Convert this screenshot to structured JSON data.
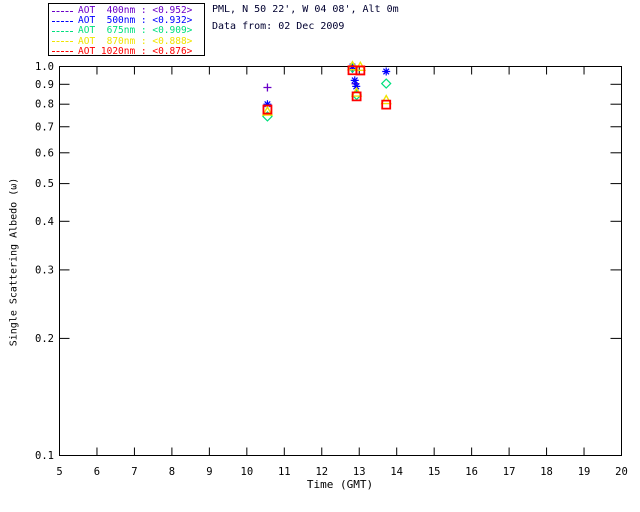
{
  "header": {
    "location_line": "PML, N 50 22', W 04 08', Alt 0m",
    "date_line": "Data from: 02 Dec 2009"
  },
  "legend": {
    "items": [
      {
        "label": "AOT  400nm : <0.952>",
        "wavelength_nm": 400,
        "mean_ssa": 0.952,
        "color": "#6A00C8",
        "marker": "plus"
      },
      {
        "label": "AOT  500nm : <0.932>",
        "wavelength_nm": 500,
        "mean_ssa": 0.932,
        "color": "#0000FF",
        "marker": "asterisk"
      },
      {
        "label": "AOT  675nm : <0.909>",
        "wavelength_nm": 675,
        "mean_ssa": 0.909,
        "color": "#00E07E",
        "marker": "diamond"
      },
      {
        "label": "AOT  870nm : <0.888>",
        "wavelength_nm": 870,
        "mean_ssa": 0.888,
        "color": "#F0E400",
        "marker": "triangle"
      },
      {
        "label": "AOT 1020nm : <0.876>",
        "wavelength_nm": 1020,
        "mean_ssa": 0.876,
        "color": "#FF0000",
        "marker": "square"
      }
    ]
  },
  "chart_data": {
    "type": "scatter",
    "title": "",
    "xlabel": "Time (GMT)",
    "ylabel": "Single Scattering Albedo (ω)",
    "xlim": [
      5,
      20
    ],
    "x_ticks": [
      5,
      6,
      7,
      8,
      9,
      10,
      11,
      12,
      13,
      14,
      15,
      16,
      17,
      18,
      19,
      20
    ],
    "y_scale": "log",
    "ylim": [
      0.1,
      1.0
    ],
    "y_ticks": [
      1.0,
      0.9,
      0.8,
      0.7,
      0.6,
      0.5,
      0.4,
      0.3,
      0.2,
      0.1
    ],
    "y_tick_labels": [
      "1.0",
      "0.9",
      "0.8",
      "0.7",
      "0.6",
      "0.5",
      "0.4",
      "0.3",
      "0.2",
      "0.1"
    ],
    "grid": false,
    "legend_position": "top-left",
    "series": [
      {
        "name": "AOT 400nm",
        "color": "#6A00C8",
        "marker": "plus",
        "points": [
          [
            10.55,
            0.883
          ],
          [
            12.82,
            0.985
          ],
          [
            12.9,
            0.903
          ]
        ]
      },
      {
        "name": "AOT 500nm",
        "color": "#0000FF",
        "marker": "asterisk",
        "points": [
          [
            10.55,
            0.8
          ],
          [
            12.82,
            1.0
          ],
          [
            12.88,
            0.921
          ],
          [
            12.92,
            0.889
          ],
          [
            13.72,
            0.971
          ]
        ]
      },
      {
        "name": "AOT 675nm",
        "color": "#00E07E",
        "marker": "diamond",
        "points": [
          [
            10.55,
            0.744
          ],
          [
            12.82,
            0.993
          ],
          [
            12.93,
            0.845
          ],
          [
            13.72,
            0.904
          ]
        ]
      },
      {
        "name": "AOT 870nm",
        "color": "#F0E400",
        "marker": "triangle",
        "points": [
          [
            10.55,
            0.766
          ],
          [
            12.82,
            1.002
          ],
          [
            13.03,
            0.998
          ],
          [
            12.93,
            0.857
          ],
          [
            13.72,
            0.82
          ]
        ]
      },
      {
        "name": "AOT 1020nm",
        "color": "#FF0000",
        "marker": "square",
        "points": [
          [
            10.55,
            0.775
          ],
          [
            12.82,
            0.978
          ],
          [
            13.03,
            0.977
          ],
          [
            12.93,
            0.838
          ],
          [
            13.72,
            0.798
          ]
        ]
      }
    ]
  }
}
